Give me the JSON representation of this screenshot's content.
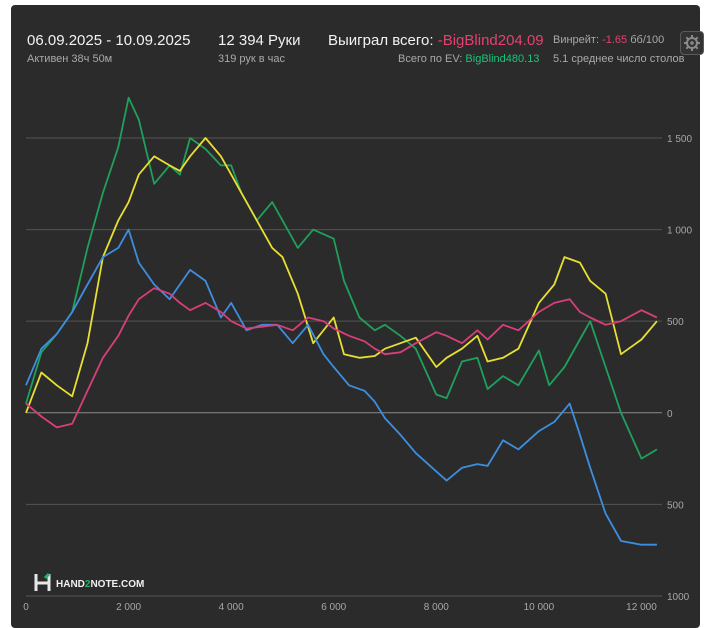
{
  "header": {
    "date_range": "06.09.2025 - 10.09.2025",
    "active": "Активен 38ч 50м",
    "hands": "12 394 Руки",
    "hands_rate": "319 рук в час",
    "won_label": "Выиграл всего:",
    "won_value": "-BigBlind204.09",
    "ev_label": "Всего по EV:",
    "ev_value": "BigBlind480.13",
    "winrate_label": "Винрейт:",
    "winrate_value": "-1.65",
    "winrate_unit": "бб/100",
    "avg_players": "5.1 среднее число столов"
  },
  "logo": {
    "text_a": "HAND",
    "text_b": "2",
    "text_c": "NOTE.COM"
  },
  "gear_icon": "gear-icon",
  "chart_data": {
    "type": "line",
    "title": "",
    "xlabel": "",
    "ylabel": "",
    "xlim": [
      0,
      12400
    ],
    "ylim": [
      -1000,
      1800
    ],
    "x_ticks": [
      0,
      2000,
      4000,
      6000,
      8000,
      10000,
      12000
    ],
    "x_tick_labels": [
      "0",
      "2 000",
      "4 000",
      "6 000",
      "8 000",
      "10 000",
      "12 000"
    ],
    "y_ticks": [
      1500,
      1000,
      500,
      0,
      -500,
      -1000
    ],
    "y_tick_labels": [
      "1 500",
      "1 000",
      "500",
      "0",
      "500",
      "1000"
    ],
    "grid": true,
    "series": [
      {
        "color": "#1fa05c",
        "x": [
          0,
          300,
          600,
          900,
          1200,
          1500,
          1800,
          2000,
          2200,
          2500,
          2800,
          3000,
          3200,
          3500,
          3800,
          4000,
          4200,
          4500,
          4800,
          5000,
          5300,
          5600,
          6000,
          6200,
          6500,
          6800,
          7000,
          7300,
          7600,
          8000,
          8200,
          8500,
          8800,
          9000,
          9300,
          9600,
          10000,
          10200,
          10500,
          10800,
          11000,
          11300,
          11600,
          12000,
          12300
        ],
        "y": [
          50,
          330,
          430,
          550,
          900,
          1200,
          1450,
          1720,
          1600,
          1250,
          1350,
          1300,
          1500,
          1440,
          1350,
          1350,
          1200,
          1050,
          1150,
          1050,
          900,
          1000,
          950,
          720,
          520,
          450,
          480,
          420,
          350,
          100,
          80,
          280,
          300,
          130,
          200,
          150,
          340,
          150,
          250,
          400,
          500,
          250,
          0,
          -250,
          -200
        ]
      },
      {
        "color": "#e9df32",
        "x": [
          0,
          300,
          600,
          900,
          1200,
          1500,
          1800,
          2000,
          2200,
          2500,
          2800,
          3000,
          3200,
          3500,
          3800,
          4000,
          4200,
          4500,
          4800,
          5000,
          5300,
          5600,
          6000,
          6200,
          6500,
          6800,
          7000,
          7300,
          7600,
          8000,
          8200,
          8500,
          8800,
          9000,
          9300,
          9600,
          10000,
          10300,
          10500,
          10800,
          11000,
          11300,
          11600,
          12000,
          12300
        ],
        "y": [
          0,
          220,
          150,
          90,
          380,
          850,
          1050,
          1150,
          1300,
          1400,
          1350,
          1320,
          1400,
          1500,
          1400,
          1300,
          1200,
          1050,
          900,
          850,
          650,
          380,
          520,
          320,
          300,
          310,
          350,
          380,
          410,
          250,
          300,
          350,
          420,
          280,
          300,
          350,
          600,
          700,
          850,
          820,
          720,
          650,
          320,
          400,
          500
        ]
      },
      {
        "color": "#3d8ee0",
        "x": [
          0,
          300,
          600,
          900,
          1200,
          1500,
          1800,
          2000,
          2200,
          2500,
          2800,
          3000,
          3200,
          3500,
          3800,
          4000,
          4300,
          4600,
          4900,
          5200,
          5500,
          5800,
          6000,
          6300,
          6600,
          6800,
          7000,
          7300,
          7600,
          8000,
          8200,
          8500,
          8800,
          9000,
          9300,
          9600,
          10000,
          10300,
          10600,
          10800,
          11000,
          11300,
          11600,
          12000,
          12300
        ],
        "y": [
          150,
          350,
          430,
          550,
          700,
          850,
          900,
          1000,
          820,
          700,
          620,
          700,
          780,
          720,
          520,
          600,
          450,
          480,
          480,
          380,
          480,
          320,
          250,
          150,
          120,
          60,
          -30,
          -120,
          -220,
          -320,
          -370,
          -300,
          -280,
          -290,
          -150,
          -200,
          -100,
          -50,
          50,
          -120,
          -300,
          -550,
          -700,
          -720,
          -720
        ]
      },
      {
        "color": "#d83f7a",
        "x": [
          0,
          300,
          600,
          900,
          1200,
          1500,
          1800,
          2000,
          2200,
          2500,
          2800,
          3000,
          3200,
          3500,
          3800,
          4000,
          4300,
          4600,
          4900,
          5200,
          5500,
          5800,
          6000,
          6300,
          6600,
          6800,
          7000,
          7300,
          7600,
          8000,
          8200,
          8500,
          8800,
          9000,
          9300,
          9600,
          10000,
          10300,
          10600,
          10800,
          11000,
          11300,
          11600,
          12000,
          12300
        ],
        "y": [
          50,
          -20,
          -80,
          -60,
          120,
          300,
          420,
          530,
          620,
          680,
          650,
          600,
          560,
          600,
          550,
          500,
          460,
          470,
          480,
          450,
          520,
          500,
          460,
          420,
          390,
          350,
          320,
          330,
          380,
          440,
          420,
          380,
          450,
          400,
          480,
          450,
          550,
          600,
          620,
          550,
          520,
          480,
          500,
          560,
          520
        ]
      }
    ]
  }
}
